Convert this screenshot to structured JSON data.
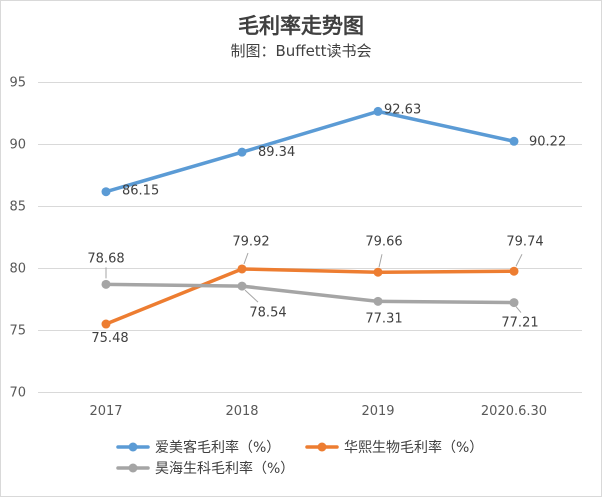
{
  "chart_data": {
    "type": "line",
    "title": "毛利率走势图",
    "subtitle": "制图：Buffett读书会",
    "categories": [
      "2017",
      "2018",
      "2019",
      "2020.6.30"
    ],
    "ylim": [
      70,
      95
    ],
    "yticks": [
      70,
      75,
      80,
      85,
      90,
      95
    ],
    "grid": true,
    "legend": "bottom",
    "data_labels": true,
    "series": [
      {
        "name": "爱美客毛利率（%）",
        "color": "#5B9BD5",
        "values": [
          86.15,
          89.34,
          92.63,
          90.22
        ]
      },
      {
        "name": "华熙生物毛利率（%）",
        "color": "#ED7D31",
        "values": [
          75.48,
          79.92,
          79.66,
          79.74
        ]
      },
      {
        "name": "昊海生科毛利率（%）",
        "color": "#A5A5A5",
        "values": [
          78.68,
          78.54,
          77.31,
          77.21
        ]
      }
    ]
  }
}
